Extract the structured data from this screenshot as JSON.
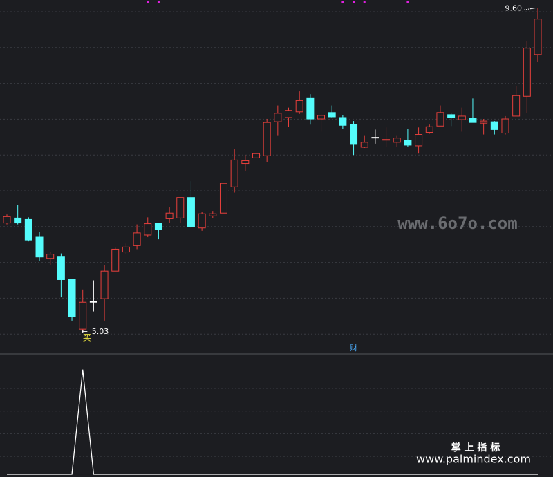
{
  "chart_data": {
    "type": "candlestick",
    "open": [
      6.56,
      6.63,
      6.61,
      6.36,
      6.06,
      6.08,
      5.76,
      5.06,
      5.45,
      5.49,
      5.88,
      6.15,
      6.24,
      6.39,
      6.56,
      6.62,
      6.63,
      6.92,
      6.49,
      6.66,
      6.7,
      7.07,
      7.4,
      7.48,
      7.51,
      7.99,
      8.05,
      8.13,
      8.32,
      8.03,
      8.12,
      8.05,
      7.95,
      7.63,
      7.77,
      7.73,
      7.7,
      7.73,
      7.65,
      7.84,
      7.93,
      8.09,
      8.02,
      8.04,
      7.97,
      7.99,
      7.83,
      8.07,
      8.35,
      8.94
    ],
    "high": [
      6.68,
      6.81,
      6.64,
      6.43,
      6.15,
      6.13,
      5.76,
      5.62,
      5.75,
      5.96,
      6.21,
      6.27,
      6.54,
      6.64,
      6.56,
      6.78,
      6.92,
      7.15,
      6.72,
      6.73,
      7.12,
      7.6,
      7.52,
      7.8,
      8.03,
      8.22,
      8.19,
      8.42,
      8.38,
      8.1,
      8.22,
      8.08,
      8.0,
      7.79,
      7.88,
      7.91,
      7.79,
      7.89,
      7.91,
      7.95,
      8.22,
      8.11,
      8.19,
      8.32,
      8.03,
      8.0,
      8.07,
      8.49,
      9.13,
      9.6
    ],
    "low": [
      6.54,
      6.54,
      6.3,
      6.02,
      5.97,
      5.51,
      5.18,
      5.03,
      5.31,
      5.18,
      5.88,
      6.12,
      6.19,
      6.36,
      6.33,
      6.56,
      6.56,
      6.49,
      6.45,
      6.63,
      6.7,
      6.99,
      7.29,
      7.47,
      7.42,
      7.79,
      7.92,
      8.1,
      7.95,
      7.85,
      8.04,
      7.89,
      7.52,
      7.62,
      7.68,
      7.64,
      7.63,
      7.64,
      7.54,
      7.82,
      7.93,
      7.93,
      7.85,
      7.98,
      7.81,
      7.81,
      7.81,
      8.07,
      8.11,
      8.84
    ],
    "close": [
      6.65,
      6.56,
      6.32,
      6.08,
      6.12,
      5.76,
      5.24,
      5.44,
      5.45,
      5.88,
      6.19,
      6.22,
      6.42,
      6.55,
      6.47,
      6.7,
      6.92,
      6.51,
      6.69,
      6.69,
      7.12,
      7.45,
      7.44,
      7.54,
      7.98,
      8.11,
      8.15,
      8.29,
      8.03,
      8.08,
      8.06,
      7.94,
      7.67,
      7.7,
      7.77,
      7.74,
      7.76,
      7.66,
      7.81,
      7.92,
      8.12,
      8.05,
      8.07,
      7.98,
      8.0,
      7.88,
      8.03,
      8.36,
      9.03,
      9.44
    ],
    "ylim": [
      4.71,
      9.71
    ],
    "up_color": "#e8403c",
    "down_color": "#54fcfc",
    "flat_color": "#ffffff",
    "high_label": "9.60",
    "low_label": "5.03",
    "buy_mark": "买",
    "finance_mark": {
      "label": "财",
      "index": 32
    },
    "signal_dots": [
      13,
      14,
      31,
      32,
      33,
      37
    ],
    "signal_color": "#e020e0",
    "indicator": {
      "values": [
        0,
        0,
        0,
        0,
        0,
        0,
        0,
        1,
        0,
        0,
        0,
        0,
        0,
        0,
        0,
        0,
        0,
        0,
        0,
        0,
        0,
        0,
        0,
        0,
        0,
        0,
        0,
        0,
        0,
        0,
        0,
        0,
        0,
        0,
        0,
        0,
        0,
        0,
        0,
        0,
        0,
        0,
        0,
        0,
        0,
        0,
        0,
        0,
        0,
        0
      ],
      "ylim": [
        0,
        1.15
      ],
      "color": "#ffffff"
    }
  },
  "watermark": "www.6o7o.com",
  "footer": {
    "title": "掌 上 指 标",
    "site": "www.palmindex.com"
  }
}
